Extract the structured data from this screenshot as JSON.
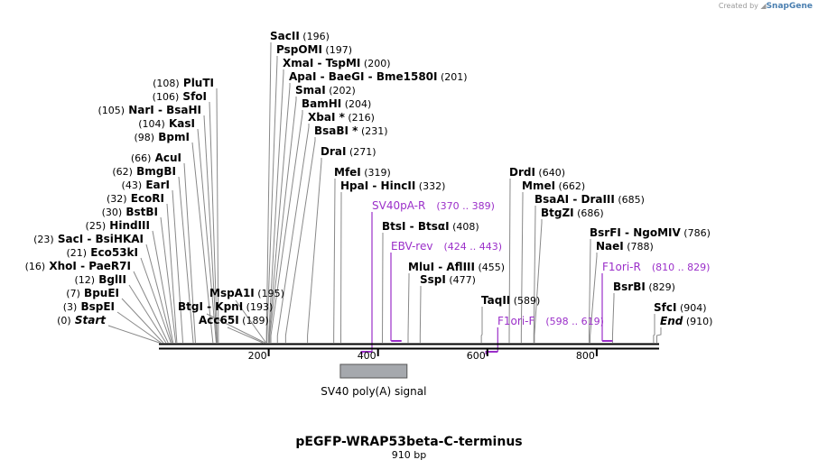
{
  "credit": {
    "prefix": "Created by",
    "brand": "SnapGene"
  },
  "title": "pEGFP-WRAP53beta-C-terminus",
  "length_label": "910 bp",
  "colors": {
    "line": "#000000",
    "primer": "#9b2fc9",
    "feature": "#a5a8ad"
  },
  "axis": {
    "start": 0,
    "end": 910,
    "ticks": [
      200,
      400,
      600,
      800
    ]
  },
  "features": [
    {
      "name": "SV40 poly(A) signal",
      "start": 331,
      "end": 453
    }
  ],
  "sites": [
    {
      "name": "Start",
      "loc": "(0)",
      "pos": 0,
      "italic": true
    },
    {
      "name": "BspEI",
      "loc": "(3)",
      "pos": 3
    },
    {
      "name": "BpuEI",
      "loc": "(7)",
      "pos": 7
    },
    {
      "name": "BglII",
      "loc": "(12)",
      "pos": 12
    },
    {
      "name": "XhoI",
      "name2": "PaeR7I",
      "loc": "(16)",
      "pos": 16
    },
    {
      "name": "Eco53kI",
      "loc": "(21)",
      "pos": 21
    },
    {
      "name": "SacI",
      "name2": "BsiHKAI",
      "loc": "(23)",
      "pos": 23
    },
    {
      "name": "HindIII",
      "loc": "(25)",
      "pos": 25
    },
    {
      "name": "BstBI",
      "loc": "(30)",
      "pos": 30
    },
    {
      "name": "EcoRI",
      "loc": "(32)",
      "pos": 32
    },
    {
      "name": "EarI",
      "loc": "(43)",
      "pos": 43
    },
    {
      "name": "BmgBI",
      "loc": "(62)",
      "pos": 62
    },
    {
      "name": "AcuI",
      "loc": "(66)",
      "pos": 66
    },
    {
      "name": "BpmI",
      "loc": "(98)",
      "pos": 98
    },
    {
      "name": "KasI",
      "loc": "(104)",
      "pos": 104
    },
    {
      "name": "NarI",
      "name2": "BsaHI",
      "loc": "(105)",
      "pos": 105
    },
    {
      "name": "SfoI",
      "loc": "(106)",
      "pos": 106
    },
    {
      "name": "PluTI",
      "loc": "(108)",
      "pos": 108
    },
    {
      "name": "Acc65I",
      "loc": "(189)",
      "pos": 189
    },
    {
      "name": "BtgI",
      "name2": "KpnI",
      "loc": "(193)",
      "pos": 193
    },
    {
      "name": "MspA1I",
      "loc": "(195)",
      "pos": 195
    },
    {
      "name": "SacII",
      "loc": "(196)",
      "pos": 196
    },
    {
      "name": "PspOMI",
      "loc": "(197)",
      "pos": 197
    },
    {
      "name": "XmaI",
      "name2": "TspMI",
      "loc": "(200)",
      "pos": 200
    },
    {
      "name": "ApaI",
      "name2": "BaeGI",
      "name3": "Bme1580I",
      "loc": "(201)",
      "pos": 201
    },
    {
      "name": "SmaI",
      "loc": "(202)",
      "pos": 202
    },
    {
      "name": "BamHI",
      "loc": "(204)",
      "pos": 204
    },
    {
      "name": "XbaI *",
      "loc": "(216)",
      "pos": 216
    },
    {
      "name": "BsaBI *",
      "loc": "(231)",
      "pos": 231
    },
    {
      "name": "DraI",
      "loc": "(271)",
      "pos": 271
    },
    {
      "name": "MfeI",
      "loc": "(319)",
      "pos": 319
    },
    {
      "name": "HpaI",
      "name2": "HincII",
      "loc": "(332)",
      "pos": 332
    },
    {
      "name": "BtsI",
      "name2": "BtsαI",
      "loc": "(408)",
      "pos": 408
    },
    {
      "name": "MluI",
      "name2": "AflIII",
      "loc": "(455)",
      "pos": 455
    },
    {
      "name": "SspI",
      "loc": "(477)",
      "pos": 477
    },
    {
      "name": "TaqII",
      "loc": "(589)",
      "pos": 589
    },
    {
      "name": "DrdI",
      "loc": "(640)",
      "pos": 640
    },
    {
      "name": "MmeI",
      "loc": "(662)",
      "pos": 662
    },
    {
      "name": "BsaAI",
      "name2": "DraIII",
      "loc": "(685)",
      "pos": 685
    },
    {
      "name": "BtgZI",
      "loc": "(686)",
      "pos": 686
    },
    {
      "name": "BsrFI",
      "name2": "NgoMIV",
      "loc": "(786)",
      "pos": 786
    },
    {
      "name": "NaeI",
      "loc": "(788)",
      "pos": 788
    },
    {
      "name": "BsrBI",
      "loc": "(829)",
      "pos": 829
    },
    {
      "name": "SfcI",
      "loc": "(904)",
      "pos": 904
    },
    {
      "name": "End",
      "loc": "(910)",
      "pos": 910,
      "italic": true
    }
  ],
  "primers": [
    {
      "name": "SV40pA-R",
      "range": "(370 .. 389)",
      "start": 370,
      "end": 389,
      "strand": -1
    },
    {
      "name": "EBV-rev",
      "range": "(424 .. 443)",
      "start": 424,
      "end": 443,
      "strand": 1
    },
    {
      "name": "F1ori-F",
      "range": "(598 .. 619)",
      "start": 598,
      "end": 619,
      "strand": -1
    },
    {
      "name": "F1ori-R",
      "range": "(810 .. 829)",
      "start": 810,
      "end": 829,
      "strand": 1
    }
  ]
}
